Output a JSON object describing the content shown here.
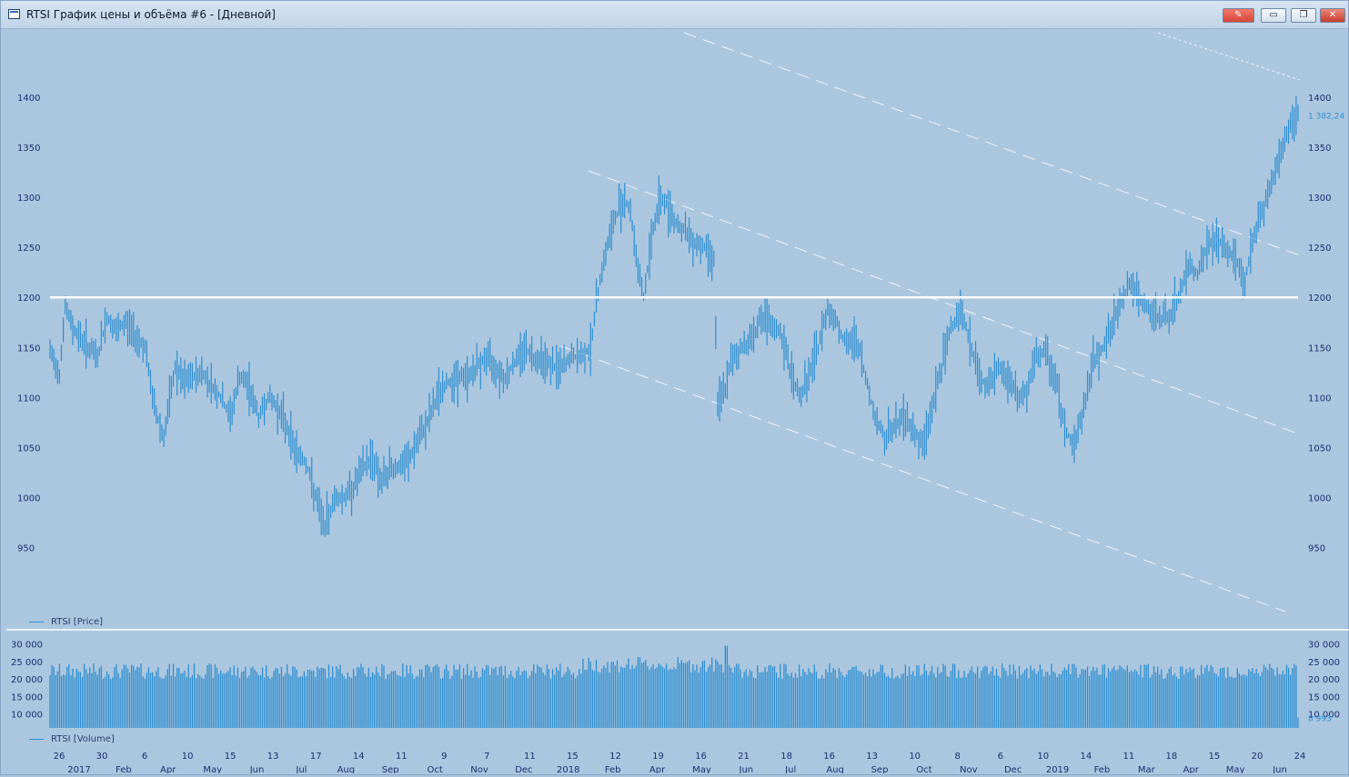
{
  "window": {
    "title": "RTSI График цены и объёма #6 - [Дневной]",
    "buttons": {
      "pen": "✎",
      "minimize": "▭",
      "maximize": "❐",
      "close": "✕"
    }
  },
  "price_panel": {
    "legend": "RTSI [Price]",
    "last_value_label": "1 382,24",
    "y_ticks": [
      "1400",
      "1350",
      "1300",
      "1250",
      "1200",
      "1150",
      "1100",
      "1050",
      "1000",
      "950"
    ]
  },
  "volume_panel": {
    "legend": "RTSI [Volume]",
    "last_value_label": "8 993",
    "y_ticks": [
      "30 000",
      "25 000",
      "20 000",
      "15 000",
      "10 000"
    ]
  },
  "x_axis": {
    "day_labels": [
      "26",
      "30",
      "6",
      "10",
      "15",
      "13",
      "17",
      "14",
      "11",
      "9",
      "7",
      "11",
      "15",
      "12",
      "19",
      "16",
      "21",
      "18",
      "16",
      "13",
      "10",
      "8",
      "6",
      "10",
      "14",
      "11",
      "18",
      "15",
      "20",
      "24"
    ],
    "month_labels": [
      "2017",
      "Feb",
      "Apr",
      "May",
      "Jun",
      "Jul",
      "Aug",
      "Sep",
      "Oct",
      "Nov",
      "Dec",
      "2018",
      "Feb",
      "Apr",
      "May",
      "Jun",
      "Jul",
      "Aug",
      "Sep",
      "Oct",
      "Nov",
      "Dec",
      "2019",
      "Feb",
      "Mar",
      "Apr",
      "May",
      "Jun"
    ]
  },
  "colors": {
    "background": "#abc6df",
    "series": "#2f8fcf",
    "axis_text": "#1c2f6e",
    "level_line": "#ffffff"
  },
  "chart_data": {
    "type": "bar",
    "title": "RTSI",
    "price_series_name": "RTSI [Price]",
    "volume_series_name": "RTSI [Volume]",
    "price_ylim": [
      925,
      1420
    ],
    "volume_ylim": [
      6000,
      32000
    ],
    "horizontal_level": 1200,
    "last_price": 1382.24,
    "last_volume": 8993,
    "price_path": [
      [
        0,
        1145
      ],
      [
        5,
        1125
      ],
      [
        8,
        1190
      ],
      [
        12,
        1170
      ],
      [
        20,
        1150
      ],
      [
        25,
        1140
      ],
      [
        30,
        1180
      ],
      [
        35,
        1165
      ],
      [
        40,
        1175
      ],
      [
        50,
        1150
      ],
      [
        55,
        1090
      ],
      [
        60,
        1060
      ],
      [
        66,
        1130
      ],
      [
        70,
        1115
      ],
      [
        80,
        1125
      ],
      [
        90,
        1100
      ],
      [
        95,
        1080
      ],
      [
        100,
        1120
      ],
      [
        105,
        1110
      ],
      [
        110,
        1080
      ],
      [
        115,
        1100
      ],
      [
        120,
        1090
      ],
      [
        125,
        1070
      ],
      [
        130,
        1045
      ],
      [
        135,
        1035
      ],
      [
        140,
        1000
      ],
      [
        145,
        970
      ],
      [
        150,
        1000
      ],
      [
        155,
        1000
      ],
      [
        160,
        1010
      ],
      [
        165,
        1030
      ],
      [
        170,
        1040
      ],
      [
        175,
        1015
      ],
      [
        180,
        1030
      ],
      [
        185,
        1030
      ],
      [
        190,
        1040
      ],
      [
        195,
        1060
      ],
      [
        200,
        1080
      ],
      [
        205,
        1105
      ],
      [
        210,
        1115
      ],
      [
        215,
        1120
      ],
      [
        220,
        1120
      ],
      [
        225,
        1130
      ],
      [
        230,
        1140
      ],
      [
        235,
        1130
      ],
      [
        240,
        1120
      ],
      [
        245,
        1135
      ],
      [
        250,
        1150
      ],
      [
        255,
        1140
      ],
      [
        260,
        1140
      ],
      [
        265,
        1130
      ],
      [
        270,
        1130
      ],
      [
        275,
        1140
      ],
      [
        280,
        1140
      ],
      [
        285,
        1150
      ],
      [
        290,
        1220
      ],
      [
        295,
        1260
      ],
      [
        300,
        1290
      ],
      [
        303,
        1300
      ],
      [
        306,
        1285
      ],
      [
        310,
        1230
      ],
      [
        313,
        1200
      ],
      [
        318,
        1270
      ],
      [
        322,
        1300
      ],
      [
        326,
        1290
      ],
      [
        330,
        1275
      ],
      [
        335,
        1265
      ],
      [
        340,
        1255
      ],
      [
        345,
        1250
      ],
      [
        350,
        1240
      ],
      [
        352,
        1090
      ],
      [
        356,
        1110
      ],
      [
        360,
        1140
      ],
      [
        365,
        1150
      ],
      [
        370,
        1160
      ],
      [
        375,
        1180
      ],
      [
        380,
        1170
      ],
      [
        385,
        1165
      ],
      [
        390,
        1130
      ],
      [
        395,
        1100
      ],
      [
        400,
        1120
      ],
      [
        405,
        1150
      ],
      [
        410,
        1190
      ],
      [
        415,
        1175
      ],
      [
        420,
        1150
      ],
      [
        425,
        1160
      ],
      [
        430,
        1120
      ],
      [
        435,
        1080
      ],
      [
        440,
        1060
      ],
      [
        445,
        1070
      ],
      [
        450,
        1080
      ],
      [
        455,
        1070
      ],
      [
        460,
        1050
      ],
      [
        465,
        1090
      ],
      [
        470,
        1130
      ],
      [
        475,
        1170
      ],
      [
        480,
        1190
      ],
      [
        485,
        1155
      ],
      [
        490,
        1120
      ],
      [
        495,
        1110
      ],
      [
        500,
        1130
      ],
      [
        505,
        1120
      ],
      [
        510,
        1100
      ],
      [
        515,
        1105
      ],
      [
        520,
        1140
      ],
      [
        525,
        1145
      ],
      [
        530,
        1120
      ],
      [
        535,
        1070
      ],
      [
        540,
        1050
      ],
      [
        545,
        1090
      ],
      [
        550,
        1135
      ],
      [
        555,
        1150
      ],
      [
        560,
        1170
      ],
      [
        565,
        1200
      ],
      [
        570,
        1215
      ],
      [
        575,
        1195
      ],
      [
        580,
        1185
      ],
      [
        585,
        1180
      ],
      [
        590,
        1180
      ],
      [
        595,
        1200
      ],
      [
        600,
        1230
      ],
      [
        605,
        1225
      ],
      [
        610,
        1250
      ],
      [
        615,
        1260
      ],
      [
        620,
        1245
      ],
      [
        625,
        1240
      ],
      [
        630,
        1215
      ],
      [
        635,
        1265
      ],
      [
        640,
        1290
      ],
      [
        645,
        1320
      ],
      [
        650,
        1350
      ],
      [
        655,
        1380
      ],
      [
        658,
        1385
      ]
    ]
  }
}
